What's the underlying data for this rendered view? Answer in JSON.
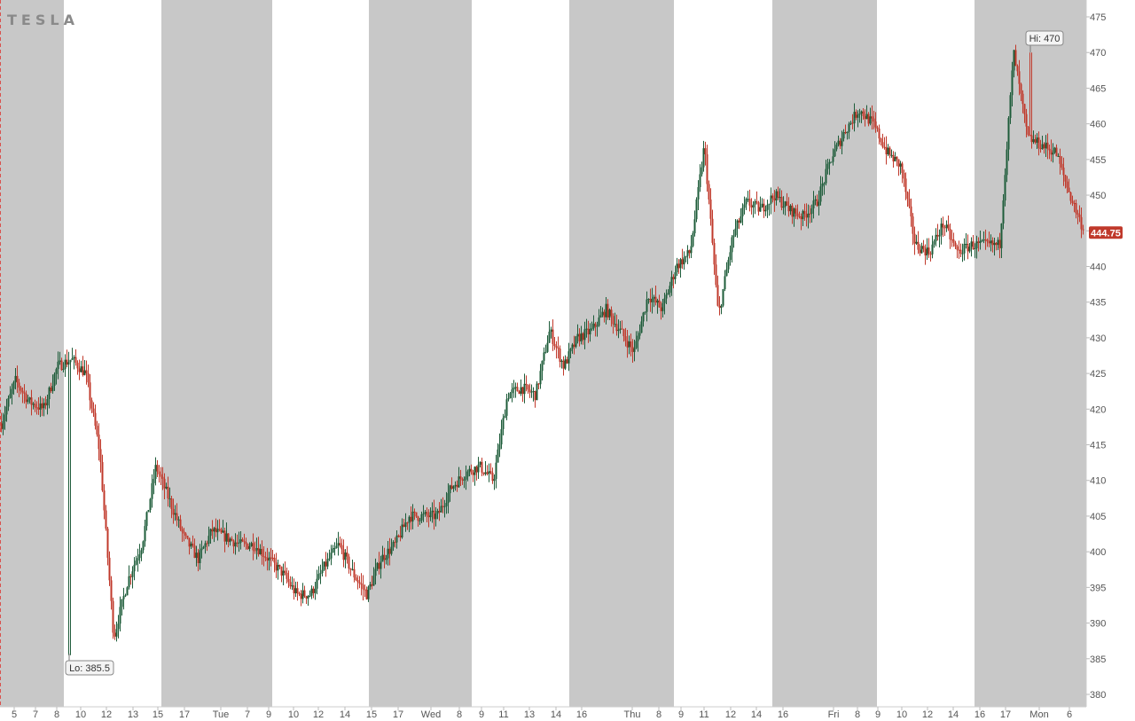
{
  "brand": {
    "logo_text": "TESLA"
  },
  "chart_data": {
    "type": "candlestick",
    "title": "",
    "ylim": [
      378,
      477
    ],
    "y_ticks": [
      380,
      385,
      390,
      395,
      400,
      405,
      410,
      415,
      420,
      425,
      430,
      435,
      440,
      445,
      450,
      455,
      460,
      465,
      470,
      475
    ],
    "x_ticks": [
      "5",
      "7",
      "8",
      "10",
      "12",
      "13",
      "15",
      "17",
      "Tue",
      "7",
      "9",
      "10",
      "12",
      "14",
      "15",
      "17",
      "Wed",
      "8",
      "9",
      "11",
      "13",
      "14",
      "16",
      "Thu",
      "8",
      "9",
      "11",
      "12",
      "14",
      "16",
      "Fri",
      "8",
      "9",
      "10",
      "12",
      "14",
      "16",
      "17",
      "Mon",
      "6"
    ],
    "session_shading": "alternating grey (extended hours) and white (regular hours) bands",
    "colors": {
      "up": "#1e5c3a",
      "down": "#c0392b",
      "shade": "#c8c8c8",
      "last_price_bg": "#c0392b"
    },
    "hi": {
      "label": "Hi: 470",
      "value": 470
    },
    "lo": {
      "label": "Lo: 385.5",
      "value": 385.5
    },
    "last_price": {
      "label": "444.75",
      "value": 444.75
    },
    "price_path": [
      [
        0,
        418
      ],
      [
        1,
        424
      ],
      [
        2,
        421
      ],
      [
        3,
        420
      ],
      [
        4,
        426
      ],
      [
        5,
        427
      ],
      [
        6,
        425
      ],
      [
        7,
        414
      ],
      [
        8,
        388
      ],
      [
        9,
        396
      ],
      [
        10,
        401
      ],
      [
        11,
        412
      ],
      [
        12,
        407
      ],
      [
        13,
        402
      ],
      [
        14,
        399
      ],
      [
        15,
        403
      ],
      [
        16,
        402
      ],
      [
        17,
        401
      ],
      [
        18,
        401
      ],
      [
        19,
        399
      ],
      [
        20,
        397
      ],
      [
        21,
        394
      ],
      [
        22,
        394
      ],
      [
        23,
        398
      ],
      [
        24,
        401
      ],
      [
        25,
        397
      ],
      [
        26,
        394
      ],
      [
        27,
        399
      ],
      [
        28,
        401
      ],
      [
        29,
        405
      ],
      [
        30,
        405
      ],
      [
        31,
        405
      ],
      [
        32,
        409
      ],
      [
        33,
        411
      ],
      [
        34,
        412
      ],
      [
        35,
        410
      ],
      [
        36,
        422
      ],
      [
        37,
        423
      ],
      [
        38,
        422
      ],
      [
        39,
        431
      ],
      [
        40,
        426
      ],
      [
        41,
        430
      ],
      [
        42,
        431
      ],
      [
        43,
        434
      ],
      [
        44,
        431
      ],
      [
        45,
        428
      ],
      [
        46,
        436
      ],
      [
        47,
        434
      ],
      [
        48,
        440
      ],
      [
        49,
        442
      ],
      [
        50,
        457
      ],
      [
        51,
        433
      ],
      [
        52,
        444
      ],
      [
        53,
        449
      ],
      [
        54,
        448
      ],
      [
        55,
        450
      ],
      [
        56,
        448
      ],
      [
        57,
        447
      ],
      [
        58,
        449
      ],
      [
        59,
        455
      ],
      [
        60,
        459
      ],
      [
        61,
        462
      ],
      [
        62,
        460
      ],
      [
        63,
        456
      ],
      [
        64,
        454
      ],
      [
        65,
        443
      ],
      [
        66,
        442
      ],
      [
        67,
        446
      ],
      [
        68,
        442
      ],
      [
        69,
        443
      ],
      [
        70,
        443
      ],
      [
        71,
        443
      ],
      [
        72,
        470
      ],
      [
        73,
        458
      ],
      [
        74,
        457
      ],
      [
        75,
        456
      ],
      [
        76,
        450
      ],
      [
        77,
        445
      ]
    ]
  }
}
